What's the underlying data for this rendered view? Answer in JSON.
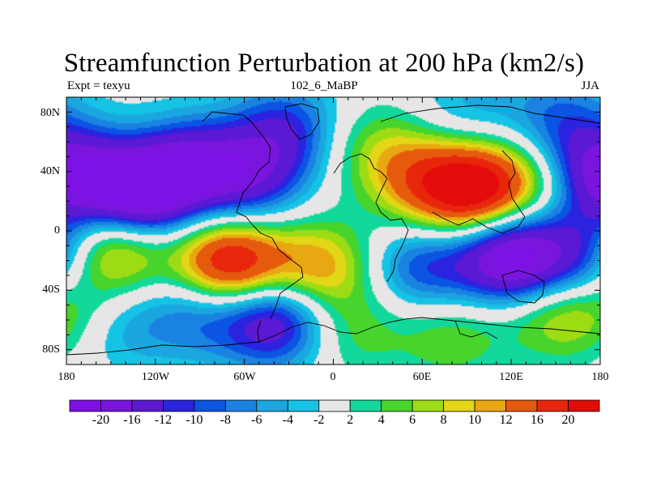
{
  "figure": {
    "title": "Streamfunction Perturbation at 200 hPa (km2/s)",
    "left_string": "Expt = texyu",
    "center_string": "102_6_MaBP",
    "right_string": "JJA"
  },
  "map": {
    "projection": "cylindrical equidistant",
    "lon_range": [
      -180,
      180
    ],
    "lat_range": [
      -90,
      90
    ],
    "lat_ticks": [
      {
        "value": 80,
        "label": "80N"
      },
      {
        "value": 40,
        "label": "40N"
      },
      {
        "value": 0,
        "label": "0"
      },
      {
        "value": -40,
        "label": "40S"
      },
      {
        "value": -80,
        "label": "80S"
      }
    ],
    "lon_ticks": [
      {
        "value": -180,
        "label": "180"
      },
      {
        "value": -120,
        "label": "120W"
      },
      {
        "value": -60,
        "label": "60W"
      },
      {
        "value": 0,
        "label": "0"
      },
      {
        "value": 60,
        "label": "60E"
      },
      {
        "value": 120,
        "label": "120E"
      },
      {
        "value": 180,
        "label": "180"
      }
    ],
    "field_features": [
      {
        "lon": -130,
        "lat": 25,
        "value": -22
      },
      {
        "lon": -95,
        "lat": 45,
        "value": -14
      },
      {
        "lon": -60,
        "lat": 30,
        "value": -10
      },
      {
        "lon": -165,
        "lat": 40,
        "value": -8
      },
      {
        "lon": -40,
        "lat": 55,
        "value": -8
      },
      {
        "lon": -30,
        "lat": 75,
        "value": -6
      },
      {
        "lon": 165,
        "lat": 50,
        "value": -9
      },
      {
        "lon": 178,
        "lat": 25,
        "value": -8
      },
      {
        "lon": 150,
        "lat": 80,
        "value": -6
      },
      {
        "lon": 90,
        "lat": 80,
        "value": -5
      },
      {
        "lon": -70,
        "lat": -22,
        "value": 22
      },
      {
        "lon": -150,
        "lat": -12,
        "value": 14
      },
      {
        "lon": -10,
        "lat": -25,
        "value": 12
      },
      {
        "lon": 95,
        "lat": 28,
        "value": 22
      },
      {
        "lon": 60,
        "lat": 33,
        "value": 10
      },
      {
        "lon": 30,
        "lat": 55,
        "value": 6
      },
      {
        "lon": 140,
        "lat": 35,
        "value": 8
      },
      {
        "lon": 120,
        "lat": -18,
        "value": -22
      },
      {
        "lon": 60,
        "lat": -25,
        "value": -10
      },
      {
        "lon": 170,
        "lat": -20,
        "value": -12
      },
      {
        "lon": -90,
        "lat": -55,
        "value": -8
      },
      {
        "lon": -40,
        "lat": -60,
        "value": -16
      },
      {
        "lon": -140,
        "lat": -65,
        "value": -5
      },
      {
        "lon": 80,
        "lat": -70,
        "value": 6
      },
      {
        "lon": 150,
        "lat": -55,
        "value": 8
      },
      {
        "lon": 15,
        "lat": -68,
        "value": 5
      },
      {
        "lon": -178,
        "lat": -50,
        "value": 5
      }
    ]
  },
  "colorbar": {
    "levels": [
      "-20",
      "-16",
      "-12",
      "-10",
      "-8",
      "-6",
      "-4",
      "-2",
      "2",
      "4",
      "6",
      "8",
      "10",
      "12",
      "16",
      "20"
    ],
    "colors": [
      "#7d11e6",
      "#7a15df",
      "#5b19d3",
      "#2a23df",
      "#0b54e4",
      "#1a83e2",
      "#1aa7e0",
      "#15c3e4",
      "#e6e6e6",
      "#12d99b",
      "#46d42d",
      "#9ddc14",
      "#e1d716",
      "#e8a812",
      "#e65a0e",
      "#e8260b",
      "#e40b0b"
    ]
  }
}
